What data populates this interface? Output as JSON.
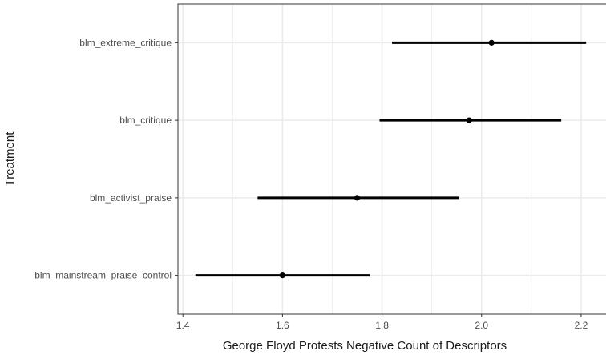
{
  "chart_data": {
    "type": "scatter",
    "subtype": "point-range",
    "xlabel": "George Floyd Protests Negative Count of Descriptors",
    "ylabel": "Treatment",
    "xlim": [
      1.39,
      2.25
    ],
    "xticks": [
      1.4,
      1.6,
      1.8,
      2.0,
      2.2
    ],
    "xtick_labels": [
      "1.4",
      "1.6",
      "1.8",
      "2.0",
      "2.2"
    ],
    "grid": true,
    "categories": [
      "blm_extreme_critique",
      "blm_critique",
      "blm_activist_praise",
      "blm_mainstream_praise_control"
    ],
    "estimates": [
      2.02,
      1.975,
      1.75,
      1.6
    ],
    "ci_low": [
      1.82,
      1.795,
      1.55,
      1.425
    ],
    "ci_high": [
      2.21,
      2.16,
      1.955,
      1.775
    ],
    "colors": {
      "point": "#000000",
      "grid": "#ebebeb",
      "panel_border": "#333333"
    }
  }
}
